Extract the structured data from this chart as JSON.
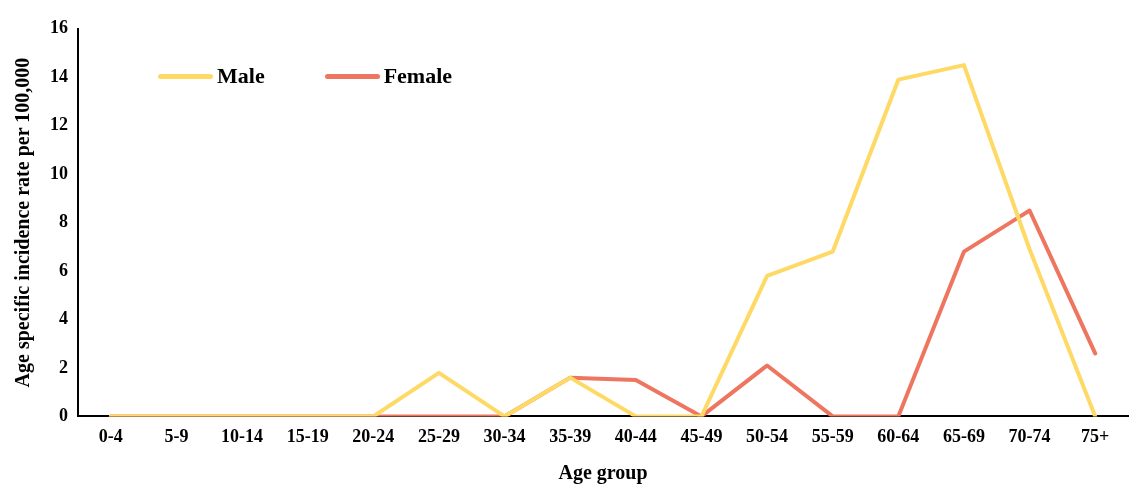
{
  "chart_data": {
    "type": "line",
    "xlabel": "Age group",
    "ylabel": "Age specific incidence rate per 100,000",
    "categories": [
      "0-4",
      "5-9",
      "10-14",
      "15-19",
      "20-24",
      "25-29",
      "30-34",
      "35-39",
      "40-44",
      "45-49",
      "50-54",
      "55-59",
      "60-64",
      "65-69",
      "70-74",
      "75+"
    ],
    "series": [
      {
        "name": "Male",
        "color": "#ffd966",
        "values": [
          0,
          0,
          0,
          0,
          0,
          1.8,
          0,
          1.6,
          0,
          0,
          5.8,
          6.8,
          13.9,
          14.5,
          6.9,
          0
        ]
      },
      {
        "name": "Female",
        "color": "#ee7660",
        "values": [
          0,
          0,
          0,
          0,
          0,
          0,
          0,
          1.6,
          1.5,
          0,
          2.1,
          0,
          0,
          6.8,
          8.5,
          2.6
        ]
      }
    ],
    "ylim": [
      0,
      16
    ],
    "yticks": [
      0,
      2,
      4,
      6,
      8,
      10,
      12,
      14,
      16
    ],
    "grid": false,
    "legend": "top left",
    "marker": "none",
    "line_style": "solid"
  }
}
